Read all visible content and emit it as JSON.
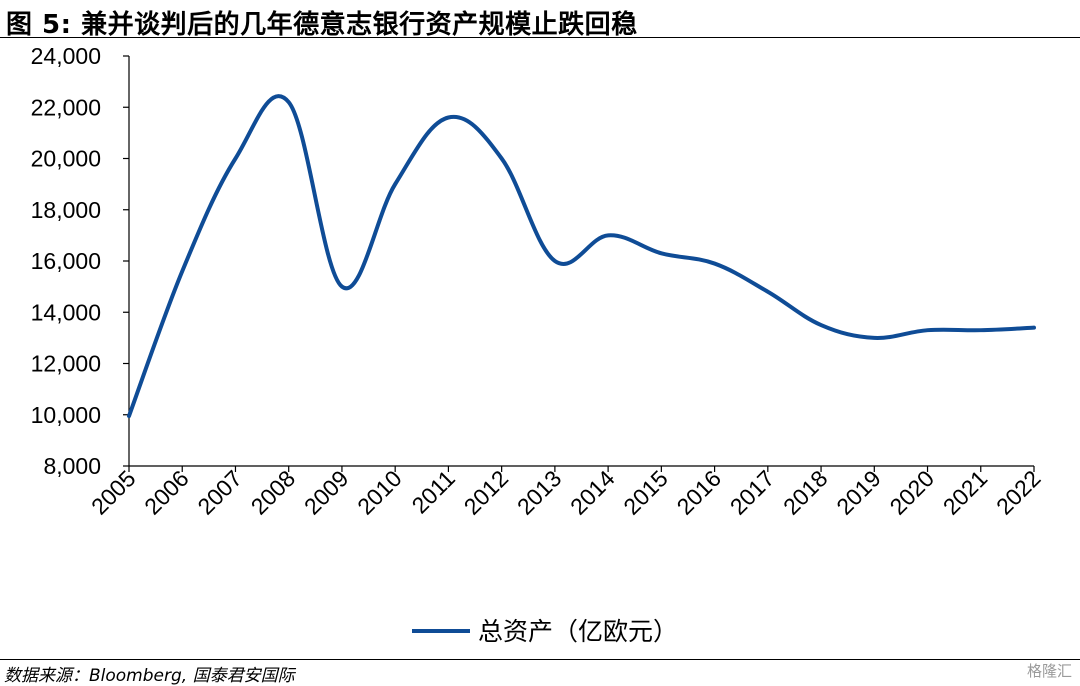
{
  "header": {
    "title": "图 5:  兼并谈判后的几年德意志银行资产规模止跌回稳"
  },
  "chart_data": {
    "type": "line",
    "categories": [
      "2005",
      "2006",
      "2007",
      "2008",
      "2009",
      "2010",
      "2011",
      "2012",
      "2013",
      "2014",
      "2015",
      "2016",
      "2017",
      "2018",
      "2019",
      "2020",
      "2021",
      "2022"
    ],
    "series": [
      {
        "name": "总资产（亿欧元）",
        "color": "#0f4c96",
        "values": [
          9950,
          15600,
          20000,
          22200,
          15000,
          19000,
          21600,
          20000,
          16000,
          17000,
          16300,
          15900,
          14800,
          13500,
          13000,
          13300,
          13300,
          13400
        ]
      }
    ],
    "ylim": [
      8000,
      24000
    ],
    "yticks": [
      "8,000",
      "10,000",
      "12,000",
      "14,000",
      "16,000",
      "18,000",
      "20,000",
      "22,000",
      "24,000"
    ],
    "ytick_values": [
      8000,
      10000,
      12000,
      14000,
      16000,
      18000,
      20000,
      22000,
      24000
    ],
    "legend_position": "bottom-center",
    "grid": false,
    "xlabel": "",
    "ylabel": ""
  },
  "footer": {
    "source": "数据来源：Bloomberg, 国泰君安国际",
    "watermark": "格隆汇"
  }
}
